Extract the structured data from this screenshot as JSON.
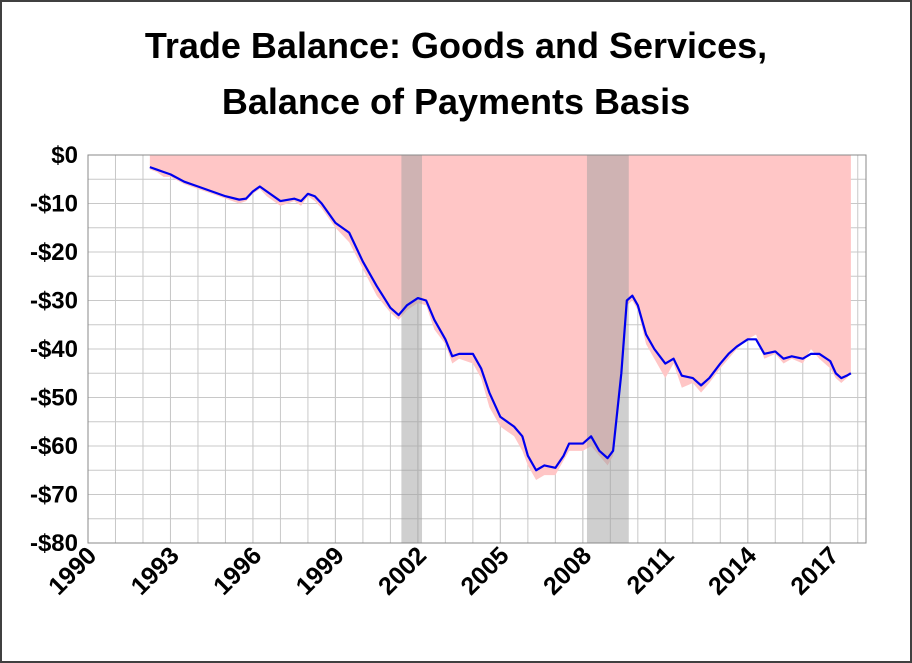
{
  "chart_data": {
    "type": "line",
    "title": [
      "Trade Balance: Goods and Services,",
      "Balance of Payments Basis"
    ],
    "x": [
      1992.25,
      1992.5,
      1992.75,
      1993,
      1993.5,
      1994,
      1994.5,
      1995,
      1995.5,
      1995.75,
      1996,
      1996.25,
      1996.5,
      1997,
      1997.5,
      1997.75,
      1998,
      1998.25,
      1998.5,
      1999,
      1999.5,
      2000,
      2000.5,
      2001,
      2001.3,
      2001.6,
      2002,
      2002.3,
      2002.6,
      2003,
      2003.25,
      2003.5,
      2004,
      2004.3,
      2004.6,
      2005,
      2005.5,
      2005.8,
      2006,
      2006.3,
      2006.6,
      2007,
      2007.3,
      2007.5,
      2008,
      2008.3,
      2008.6,
      2008.9,
      2009.1,
      2009.4,
      2009.6,
      2009.8,
      2010,
      2010.3,
      2010.6,
      2011,
      2011.3,
      2011.6,
      2012,
      2012.3,
      2012.6,
      2013,
      2013.3,
      2013.6,
      2014,
      2014.3,
      2014.6,
      2015,
      2015.3,
      2015.6,
      2016,
      2016.3,
      2016.6,
      2017,
      2017.2,
      2017.4,
      2017.6,
      2017.75
    ],
    "series": [
      {
        "color": "#ffc6c6",
        "fill": true,
        "values": [
          -3,
          -3.5,
          -4.5,
          -4.5,
          -6,
          -7,
          -8,
          -9,
          -10,
          -9.5,
          -8,
          -7,
          -8.5,
          -10.5,
          -9.5,
          -10.5,
          -8.5,
          -9.5,
          -11,
          -15,
          -18,
          -23.5,
          -29,
          -32.5,
          -34,
          -32,
          -30.5,
          -31,
          -36,
          -39,
          -43,
          -42,
          -43,
          -46,
          -52,
          -56,
          -58,
          -61,
          -64,
          -67,
          -66,
          -66,
          -63,
          -61,
          -61,
          -60,
          -62,
          -64,
          -62,
          -46,
          -31,
          -30,
          -32,
          -39,
          -42,
          -46,
          -43,
          -48,
          -47,
          -49,
          -47,
          -44,
          -42,
          -40,
          -38,
          -37,
          -42,
          -41,
          -43,
          -42,
          -43,
          -40,
          -42,
          -44,
          -46,
          -47,
          -46,
          -45
        ]
      },
      {
        "color": "#0000ee",
        "values": [
          -2.5,
          -3,
          -3.5,
          -4,
          -5.5,
          -6.5,
          -7.5,
          -8.5,
          -9.2,
          -9,
          -7.5,
          -6.5,
          -7.5,
          -9.5,
          -9,
          -9.5,
          -8,
          -8.5,
          -10,
          -14,
          -16,
          -22,
          -27,
          -31.5,
          -33,
          -31,
          -29.5,
          -30,
          -34,
          -38,
          -41.5,
          -41,
          -41,
          -44,
          -49,
          -54,
          -56,
          -58,
          -62,
          -65,
          -64,
          -64.5,
          -62,
          -59.5,
          -59.5,
          -58,
          -61,
          -62.5,
          -61,
          -45,
          -30,
          -29,
          -31,
          -37,
          -40,
          -43,
          -42,
          -45.5,
          -46,
          -47.5,
          -46,
          -43,
          -41,
          -39.5,
          -38,
          -38,
          -41,
          -40.5,
          -42,
          -41.5,
          -42,
          -41,
          -41,
          -42.5,
          -45,
          -46,
          -45.5,
          -45
        ]
      }
    ],
    "recessions": [
      [
        2001.4,
        2002.15
      ],
      [
        2008.15,
        2009.67
      ]
    ],
    "recession_color": "#a0a0a0",
    "xlim": [
      1990,
      2018.3
    ],
    "xticks": [
      1990,
      1993,
      1996,
      1999,
      2002,
      2005,
      2008,
      2011,
      2014,
      2017
    ],
    "ylim": [
      -80,
      0
    ],
    "yticks": [
      {
        "value": 0,
        "label": "$0"
      },
      {
        "value": -10,
        "label": "-$10"
      },
      {
        "value": -20,
        "label": "-$20"
      },
      {
        "value": -30,
        "label": "-$30"
      },
      {
        "value": -40,
        "label": "-$40"
      },
      {
        "value": -50,
        "label": "-$50"
      },
      {
        "value": -60,
        "label": "-$60"
      },
      {
        "value": -70,
        "label": "-$70"
      },
      {
        "value": -80,
        "label": "-$80"
      }
    ],
    "grid": true
  }
}
